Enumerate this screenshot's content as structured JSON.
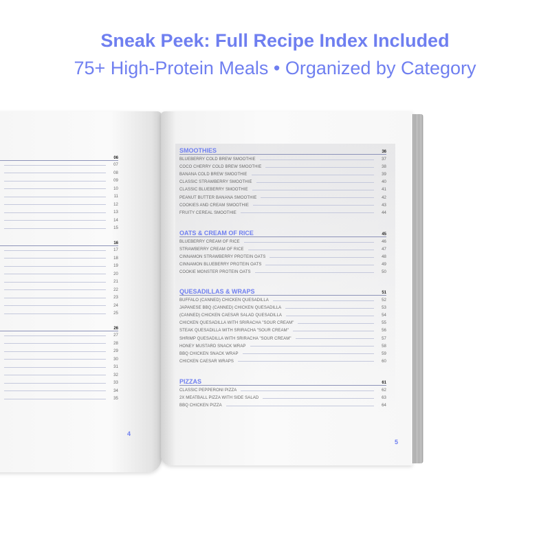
{
  "header": {
    "title": "Sneak Peek: Full Recipe Index Included",
    "subtitle": "75+ High-Protein Meals • Organized by Category"
  },
  "colors": {
    "accent": "#6f7ff0"
  },
  "left_page": {
    "page_number": "4",
    "sections": [
      {
        "page": "06",
        "items": [
          "07",
          "08",
          "09",
          "10",
          "11",
          "12",
          "13",
          "14",
          "15"
        ]
      },
      {
        "page": "16",
        "items": [
          "17",
          "18",
          "19",
          "20",
          "21",
          "22",
          "23",
          "24",
          "25"
        ]
      },
      {
        "page": "26",
        "items": [
          "27",
          "28",
          "29",
          "30",
          "31",
          "32",
          "33",
          "34",
          "35"
        ]
      }
    ]
  },
  "right_page": {
    "page_number": "5",
    "sections": [
      {
        "title": "SMOOTHIES",
        "page": "36",
        "items": [
          {
            "name": "Blueberry Cold Brew Smoothie",
            "page": "37"
          },
          {
            "name": "Coco Cherry Cold Brew Smoothie",
            "page": "38"
          },
          {
            "name": "Banana Cold Brew Smoothie",
            "page": "39"
          },
          {
            "name": "Classic Strawberry Smoothie",
            "page": "40"
          },
          {
            "name": "Classic Blueberry Smoothie",
            "page": "41"
          },
          {
            "name": "Peanut Butter Banana Smoothie",
            "page": "42"
          },
          {
            "name": "Cookies and Cream Smoothie",
            "page": "43"
          },
          {
            "name": "Fruity Cereal Smoothie",
            "page": "44"
          }
        ]
      },
      {
        "title": "OATS & CREAM OF RICE",
        "page": "45",
        "items": [
          {
            "name": "Blueberry Cream of Rice",
            "page": "46"
          },
          {
            "name": "Strawberry Cream of Rice",
            "page": "47"
          },
          {
            "name": "Cinnamon Strawberry Protein Oats",
            "page": "48"
          },
          {
            "name": "Cinnamon Blueberry Protein Oats",
            "page": "49"
          },
          {
            "name": "Cookie Monster Protein Oats",
            "page": "50"
          }
        ]
      },
      {
        "title": "QUESADILLAS & WRAPS",
        "page": "51",
        "items": [
          {
            "name": "Buffalo (Canned) Chicken Quesadilla",
            "page": "52"
          },
          {
            "name": "Japanese BBQ (Canned) Chicken Quesadilla",
            "page": "53"
          },
          {
            "name": "(Canned) Chicken Caesar Salad Quesadilla",
            "page": "54"
          },
          {
            "name": "Chicken Quesadilla with Sriracha \"Sour Cream\"",
            "page": "55"
          },
          {
            "name": "Steak Quesadilla with Sriracha \"Sour Cream\"",
            "page": "56"
          },
          {
            "name": "Shrimp Quesadilla with Sriracha \"Sour Cream\"",
            "page": "57"
          },
          {
            "name": "Honey Mustard Snack Wrap",
            "page": "58"
          },
          {
            "name": "BBQ Chicken Snack Wrap",
            "page": "59"
          },
          {
            "name": "Chicken Caesar Wraps",
            "page": "60"
          }
        ]
      },
      {
        "title": "PIZZAS",
        "page": "61",
        "items": [
          {
            "name": "Classic Pepperoni Pizza",
            "page": "62"
          },
          {
            "name": "2x Meatball Pizza with Side Salad",
            "page": "63"
          },
          {
            "name": "BBQ Chicken Pizza",
            "page": "64"
          }
        ]
      }
    ]
  }
}
